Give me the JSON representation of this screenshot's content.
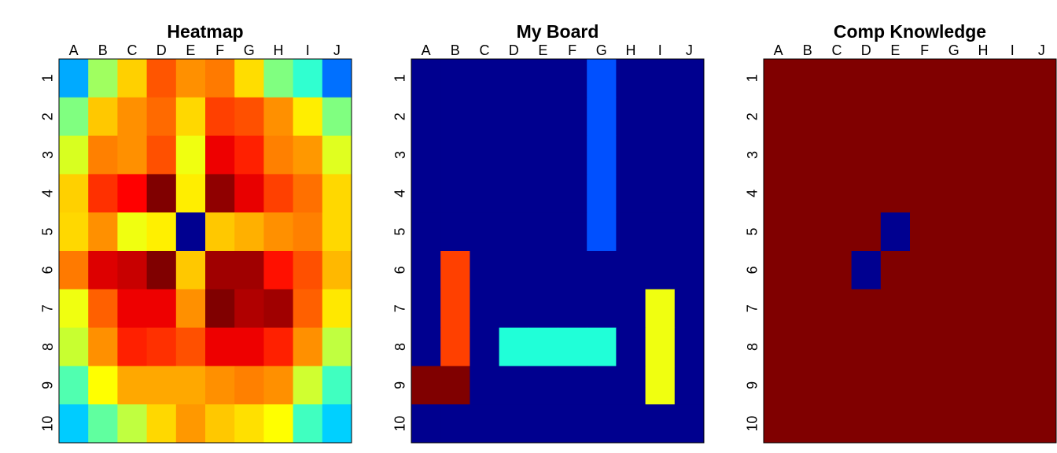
{
  "panels": [
    {
      "title": "Heatmap",
      "columns": [
        "A",
        "B",
        "C",
        "D",
        "E",
        "F",
        "G",
        "H",
        "I",
        "J"
      ],
      "rows": [
        1,
        2,
        3,
        4,
        5,
        6,
        7,
        8,
        9,
        10
      ],
      "cells": [
        [
          "#00aaff",
          "#a0ff60",
          "#ffd000",
          "#ff5500",
          "#ff9000",
          "#ff7a00",
          "#ffdd00",
          "#80ff80",
          "#30ffd0",
          "#0070ff"
        ],
        [
          "#80ff80",
          "#ffc800",
          "#ff9000",
          "#ff6a00",
          "#ffd800",
          "#ff4000",
          "#ff5000",
          "#ff9000",
          "#ffee00",
          "#80ff80"
        ],
        [
          "#d8ff20",
          "#ff8000",
          "#ff9000",
          "#ff5000",
          "#f0ff10",
          "#ee0000",
          "#ff2000",
          "#ff8000",
          "#ff9800",
          "#e0ff20"
        ],
        [
          "#ffd000",
          "#ff3000",
          "#ff0000",
          "#800000",
          "#ffee00",
          "#900000",
          "#e80000",
          "#ff4000",
          "#ff7000",
          "#ffd800"
        ],
        [
          "#ffd800",
          "#ff9000",
          "#f0ff10",
          "#fff000",
          "#000090",
          "#ffc800",
          "#ffb000",
          "#ff9000",
          "#ff8000",
          "#ffd800"
        ],
        [
          "#ff7a00",
          "#dd0000",
          "#c80000",
          "#800000",
          "#ffc800",
          "#a00000",
          "#a00000",
          "#ff1000",
          "#ff5000",
          "#ffb800"
        ],
        [
          "#f0ff10",
          "#ff6000",
          "#ee0000",
          "#ee0000",
          "#ff9000",
          "#800000",
          "#b00000",
          "#a00000",
          "#ff6000",
          "#ffe800"
        ],
        [
          "#c8ff30",
          "#ff9000",
          "#ff2000",
          "#ff3000",
          "#ff5000",
          "#ee0000",
          "#ee0000",
          "#ff2000",
          "#ff9000",
          "#c0ff40"
        ],
        [
          "#50ffb0",
          "#ffff00",
          "#ffa800",
          "#ffa800",
          "#ffa800",
          "#ff9000",
          "#ff8000",
          "#ff9000",
          "#d0ff30",
          "#40ffc0"
        ],
        [
          "#00ccff",
          "#60ff9f",
          "#c0ff40",
          "#ffd800",
          "#ff9800",
          "#ffc800",
          "#ffe000",
          "#ffff00",
          "#40ffc0",
          "#00d0ff"
        ]
      ]
    },
    {
      "title": "My Board",
      "columns": [
        "A",
        "B",
        "C",
        "D",
        "E",
        "F",
        "G",
        "H",
        "I",
        "J"
      ],
      "rows": [
        1,
        2,
        3,
        4,
        5,
        6,
        7,
        8,
        9,
        10
      ],
      "cells": [
        [
          "#00008f",
          "#00008f",
          "#00008f",
          "#00008f",
          "#00008f",
          "#00008f",
          "#0050ff",
          "#00008f",
          "#00008f",
          "#00008f"
        ],
        [
          "#00008f",
          "#00008f",
          "#00008f",
          "#00008f",
          "#00008f",
          "#00008f",
          "#0050ff",
          "#00008f",
          "#00008f",
          "#00008f"
        ],
        [
          "#00008f",
          "#00008f",
          "#00008f",
          "#00008f",
          "#00008f",
          "#00008f",
          "#0050ff",
          "#00008f",
          "#00008f",
          "#00008f"
        ],
        [
          "#00008f",
          "#00008f",
          "#00008f",
          "#00008f",
          "#00008f",
          "#00008f",
          "#0050ff",
          "#00008f",
          "#00008f",
          "#00008f"
        ],
        [
          "#00008f",
          "#00008f",
          "#00008f",
          "#00008f",
          "#00008f",
          "#00008f",
          "#0050ff",
          "#00008f",
          "#00008f",
          "#00008f"
        ],
        [
          "#00008f",
          "#ff4000",
          "#00008f",
          "#00008f",
          "#00008f",
          "#00008f",
          "#00008f",
          "#00008f",
          "#00008f",
          "#00008f"
        ],
        [
          "#00008f",
          "#ff4000",
          "#00008f",
          "#00008f",
          "#00008f",
          "#00008f",
          "#00008f",
          "#00008f",
          "#f0ff10",
          "#00008f"
        ],
        [
          "#00008f",
          "#ff4000",
          "#00008f",
          "#20ffd8",
          "#20ffd8",
          "#20ffd8",
          "#20ffd8",
          "#00008f",
          "#f0ff10",
          "#00008f"
        ],
        [
          "#800000",
          "#800000",
          "#00008f",
          "#00008f",
          "#00008f",
          "#00008f",
          "#00008f",
          "#00008f",
          "#f0ff10",
          "#00008f"
        ],
        [
          "#00008f",
          "#00008f",
          "#00008f",
          "#00008f",
          "#00008f",
          "#00008f",
          "#00008f",
          "#00008f",
          "#00008f",
          "#00008f"
        ]
      ]
    },
    {
      "title": "Comp Knowledge",
      "columns": [
        "A",
        "B",
        "C",
        "D",
        "E",
        "F",
        "G",
        "H",
        "I",
        "J"
      ],
      "rows": [
        1,
        2,
        3,
        4,
        5,
        6,
        7,
        8,
        9,
        10
      ],
      "cells": [
        [
          "#800000",
          "#800000",
          "#800000",
          "#800000",
          "#800000",
          "#800000",
          "#800000",
          "#800000",
          "#800000",
          "#800000"
        ],
        [
          "#800000",
          "#800000",
          "#800000",
          "#800000",
          "#800000",
          "#800000",
          "#800000",
          "#800000",
          "#800000",
          "#800000"
        ],
        [
          "#800000",
          "#800000",
          "#800000",
          "#800000",
          "#800000",
          "#800000",
          "#800000",
          "#800000",
          "#800000",
          "#800000"
        ],
        [
          "#800000",
          "#800000",
          "#800000",
          "#800000",
          "#800000",
          "#800000",
          "#800000",
          "#800000",
          "#800000",
          "#800000"
        ],
        [
          "#800000",
          "#800000",
          "#800000",
          "#800000",
          "#000090",
          "#800000",
          "#800000",
          "#800000",
          "#800000",
          "#800000"
        ],
        [
          "#800000",
          "#800000",
          "#800000",
          "#000090",
          "#800000",
          "#800000",
          "#800000",
          "#800000",
          "#800000",
          "#800000"
        ],
        [
          "#800000",
          "#800000",
          "#800000",
          "#800000",
          "#800000",
          "#800000",
          "#800000",
          "#800000",
          "#800000",
          "#800000"
        ],
        [
          "#800000",
          "#800000",
          "#800000",
          "#800000",
          "#800000",
          "#800000",
          "#800000",
          "#800000",
          "#800000",
          "#800000"
        ],
        [
          "#800000",
          "#800000",
          "#800000",
          "#800000",
          "#800000",
          "#800000",
          "#800000",
          "#800000",
          "#800000",
          "#800000"
        ],
        [
          "#800000",
          "#800000",
          "#800000",
          "#800000",
          "#800000",
          "#800000",
          "#800000",
          "#800000",
          "#800000",
          "#800000"
        ]
      ]
    }
  ]
}
